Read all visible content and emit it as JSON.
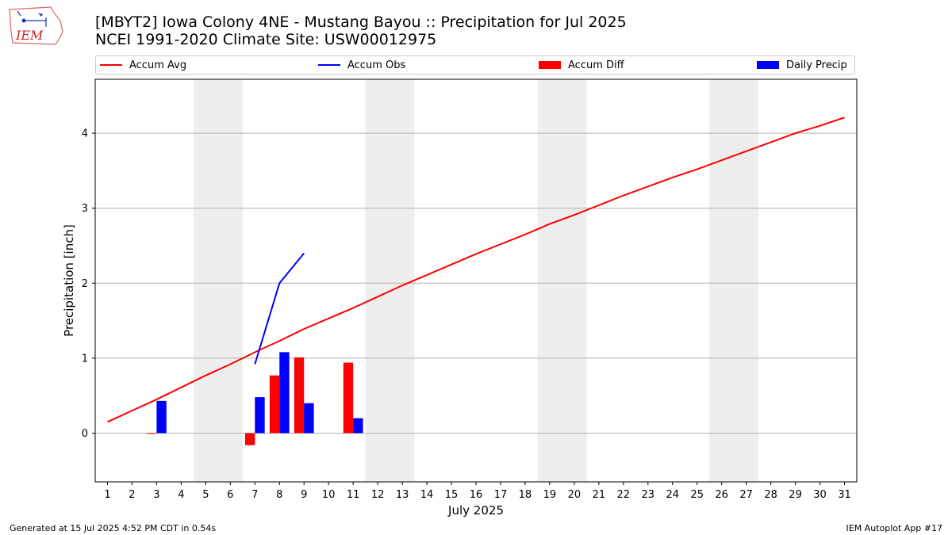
{
  "logo": {
    "text": "IEM"
  },
  "header": {
    "title_line1": "[MBYT2] Iowa Colony 4NE - Mustang Bayou :: Precipitation for Jul 2025",
    "title_line2": "NCEI 1991-2020 Climate Site: USW00012975"
  },
  "colors": {
    "avg": "#ff0000",
    "obs": "#0000ff",
    "diff": "#ff0000",
    "daily": "#0000ff",
    "weekend": "#eeeeee",
    "grid": "#b0b0b0"
  },
  "legend": {
    "accum_avg": "Accum Avg",
    "accum_obs": "Accum Obs",
    "accum_diff": "Accum Diff",
    "daily_precip": "Daily Precip"
  },
  "chart_data": {
    "type": "bar",
    "xlabel": "July 2025",
    "ylabel": "Precipitation [inch]",
    "xlim": [
      0.5,
      31.5
    ],
    "ylim": [
      -0.65,
      4.72
    ],
    "yticks": [
      0,
      1,
      2,
      3,
      4
    ],
    "grid": "y",
    "legend_placement": "top",
    "x": [
      1,
      2,
      3,
      4,
      5,
      6,
      7,
      8,
      9,
      10,
      11,
      12,
      13,
      14,
      15,
      16,
      17,
      18,
      19,
      20,
      21,
      22,
      23,
      24,
      25,
      26,
      27,
      28,
      29,
      30,
      31
    ],
    "weekend_spans": [
      [
        4.5,
        6.5
      ],
      [
        11.5,
        13.5
      ],
      [
        18.5,
        20.5
      ],
      [
        25.5,
        27.5
      ]
    ],
    "series": [
      {
        "name": "Accum Avg",
        "kind": "line",
        "x": [
          1,
          2,
          3,
          4,
          5,
          6,
          7,
          8,
          9,
          10,
          11,
          12,
          13,
          14,
          15,
          16,
          17,
          18,
          19,
          20,
          21,
          22,
          23,
          24,
          25,
          26,
          27,
          28,
          29,
          30,
          31
        ],
        "values": [
          0.15,
          0.3,
          0.45,
          0.61,
          0.77,
          0.92,
          1.08,
          1.23,
          1.39,
          1.53,
          1.67,
          1.82,
          1.97,
          2.11,
          2.25,
          2.39,
          2.52,
          2.65,
          2.79,
          2.91,
          3.04,
          3.17,
          3.29,
          3.41,
          3.52,
          3.64,
          3.76,
          3.88,
          4.0,
          4.1,
          4.21
        ]
      },
      {
        "name": "Accum Obs",
        "kind": "line",
        "x": [
          7,
          8,
          9
        ],
        "values": [
          0.92,
          2.0,
          2.4
        ]
      },
      {
        "name": "Accum Diff",
        "kind": "bar",
        "offset": -0.2,
        "x": [
          3,
          7,
          8,
          9,
          11
        ],
        "values": [
          -0.01,
          -0.16,
          0.77,
          1.01,
          0.94
        ]
      },
      {
        "name": "Daily Precip",
        "kind": "bar",
        "offset": 0.2,
        "x": [
          3,
          7,
          8,
          9,
          11
        ],
        "values": [
          0.43,
          0.48,
          1.08,
          0.4,
          0.2
        ]
      }
    ]
  },
  "footer": {
    "generated": "Generated at 15 Jul 2025 4:52 PM CDT in 0.54s",
    "app": "IEM Autoplot App #17"
  }
}
